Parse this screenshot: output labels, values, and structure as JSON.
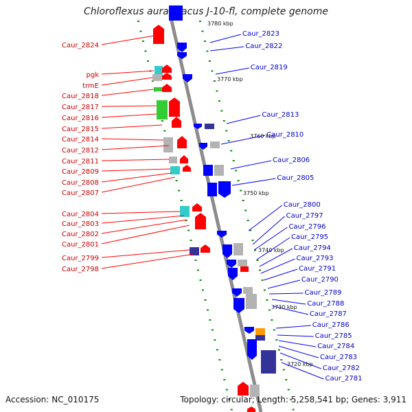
{
  "title": "Chloroflexus aurantiacus J-10-fl, complete genome",
  "footer": {
    "accession": "Accession: NC_010175",
    "summary": "Topology: circular; Length: 5,258,541 bp; Genes: 3,911"
  },
  "colors": {
    "backbone": "#8c8c8c",
    "forward": "#ff0000",
    "reverse": "#0000ff",
    "forward_label": "#cc0000",
    "reverse_label": "#0000cc",
    "tick": "#0a8a0a",
    "cyan": "#33cccc",
    "green": "#33cc33",
    "gray": "#b3b3b3",
    "orange": "#ff9900",
    "navy": "#333399"
  },
  "scale_ticks": [
    "3780 kbp",
    "3770 kbp",
    "3760 kbp",
    "3750 kbp",
    "3740 kbp",
    "3730 kbp",
    "3720 kbp"
  ],
  "left_labels": [
    "Caur_2824",
    "pgk",
    "trmE",
    "Caur_2818",
    "Caur_2817",
    "Caur_2816",
    "Caur_2815",
    "Caur_2814",
    "Caur_2812",
    "Caur_2811",
    "Caur_2809",
    "Caur_2808",
    "Caur_2807",
    "Caur_2804",
    "Caur_2803",
    "Caur_2802",
    "Caur_2801",
    "Caur_2799",
    "Caur_2798"
  ],
  "right_labels": [
    "Caur_2823",
    "Caur_2822",
    "Caur_2819",
    "Caur_2813",
    "Caur_2810",
    "Caur_2806",
    "Caur_2805",
    "Caur_2800",
    "Caur_2797",
    "Caur_2796",
    "Caur_2795",
    "Caur_2794",
    "Caur_2793",
    "Caur_2791",
    "Caur_2790",
    "Caur_2789",
    "Caur_2788",
    "Caur_2787",
    "Caur_2786",
    "Caur_2785",
    "Caur_2784",
    "Caur_2783",
    "Caur_2782",
    "Caur_2781"
  ]
}
